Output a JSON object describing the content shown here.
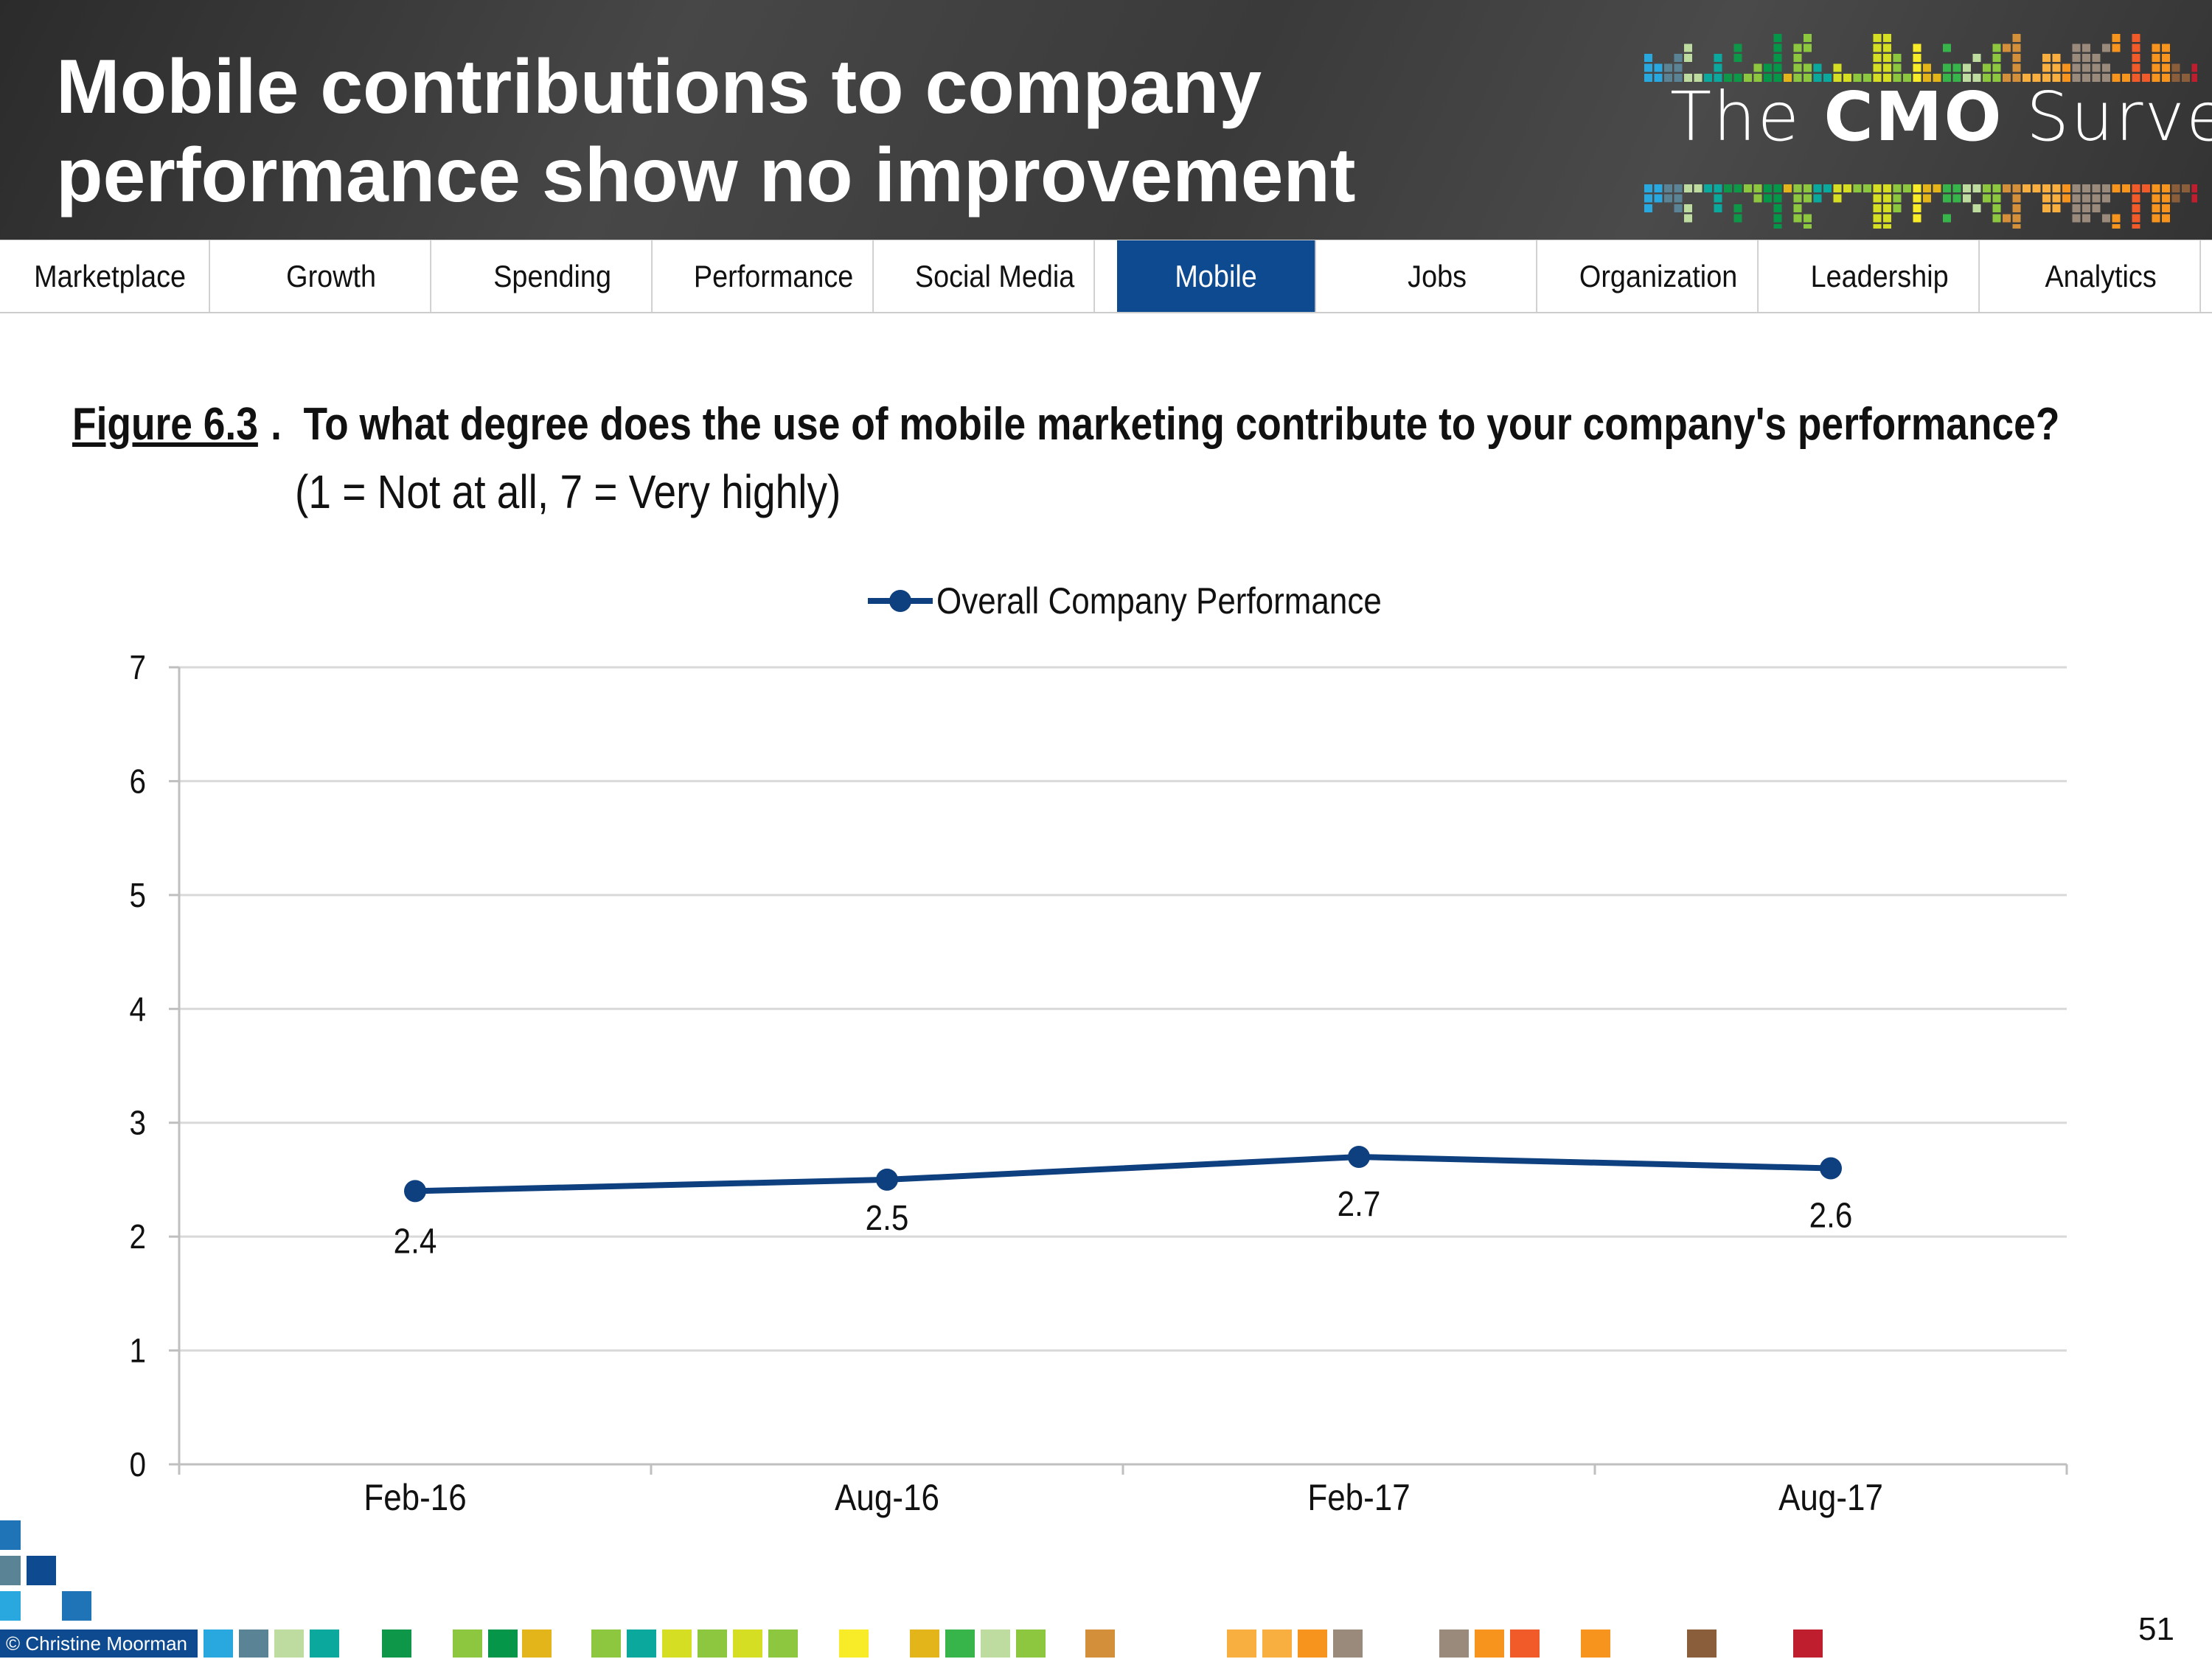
{
  "header": {
    "title_line1": "Mobile contributions to company",
    "title_line2": "performance show no improvement",
    "logo": {
      "the": "The",
      "cmo": "CMO",
      "survey": "Survey"
    }
  },
  "nav": {
    "tabs": [
      {
        "label": "Marketplace",
        "active": false
      },
      {
        "label": "Growth",
        "active": false
      },
      {
        "label": "Spending",
        "active": false
      },
      {
        "label": "Performance",
        "active": false
      },
      {
        "label": "Social Media",
        "active": false
      },
      {
        "label": "Mobile",
        "active": true
      },
      {
        "label": "Jobs",
        "active": false
      },
      {
        "label": "Organization",
        "active": false
      },
      {
        "label": "Leadership",
        "active": false
      },
      {
        "label": "Analytics",
        "active": false
      }
    ],
    "active_color": "#0e4a8f"
  },
  "figure": {
    "number": "Figure 6.3",
    "question": "To what degree does the use of mobile marketing contribute to your company's performance?",
    "scale_note": "(1 = Not at all, 7 = Very highly)"
  },
  "chart_data": {
    "type": "line",
    "categories": [
      "Feb-16",
      "Aug-16",
      "Feb-17",
      "Aug-17"
    ],
    "series": [
      {
        "name": "Overall Company Performance",
        "values": [
          2.4,
          2.5,
          2.7,
          2.6
        ],
        "color": "#0e3f7e"
      }
    ],
    "data_labels": [
      "2.4",
      "2.5",
      "2.7",
      "2.6"
    ],
    "ylim": [
      0,
      7
    ],
    "yticks": [
      "0",
      "1",
      "2",
      "3",
      "4",
      "5",
      "6",
      "7"
    ],
    "grid": true,
    "legend_placement": "top-center"
  },
  "footer": {
    "credit": "© Christine Moorman",
    "page_number": "51",
    "square_colors": [
      "#29a8e0",
      "#5b8396",
      "#bedc9f",
      "#0aa89d",
      "#0e9649",
      "#8dc63f",
      "#05964a",
      "#e3b51a",
      "#8dc63f",
      "#0aa89d",
      "#d6de23",
      "#8dc63f",
      "#d6de23",
      "#8dc63f",
      "#f7ec27",
      "#e3b51a",
      "#38b54a",
      "#bedc9f",
      "#8dc63f",
      "#d38f3a",
      "#f9ae40",
      "#f9ae40",
      "#f7941d",
      "#9a8a7b",
      "#9a8a7b",
      "#f7941d",
      "#f15a29",
      "#f7941d",
      "#8a5d3b",
      "#be1e2d"
    ]
  }
}
